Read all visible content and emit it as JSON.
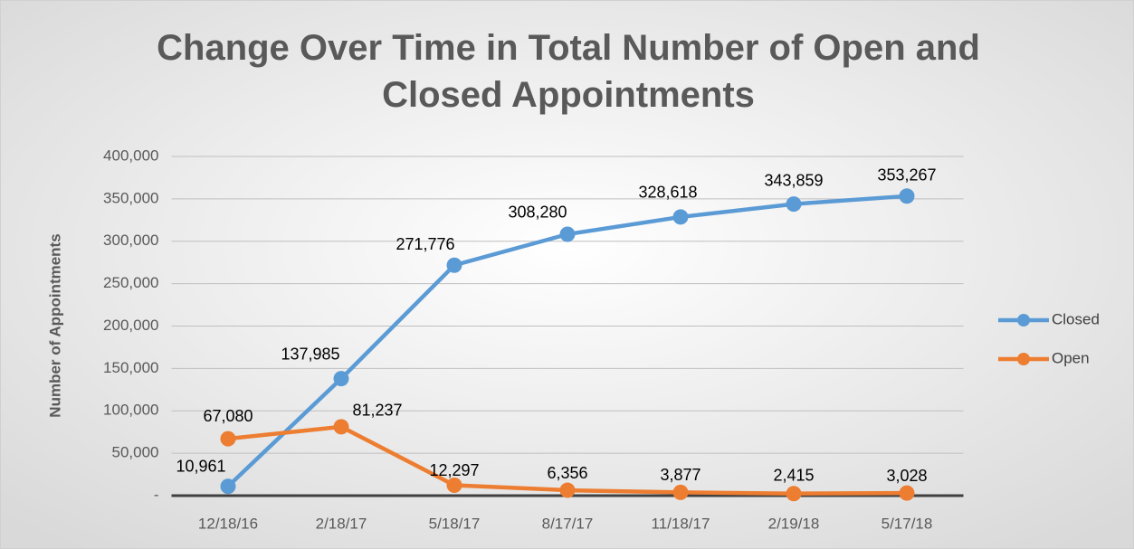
{
  "chart_data": {
    "type": "line",
    "title": "Change Over Time in Total Number of Open and Closed Appointments",
    "y_label": "Number of Appointments",
    "categories": [
      "12/18/16",
      "2/18/17",
      "5/18/17",
      "8/17/17",
      "11/18/17",
      "2/19/18",
      "5/17/18"
    ],
    "series": [
      {
        "name": "Closed",
        "color": "#5b9bd5",
        "values": [
          10961,
          137985,
          271776,
          308280,
          328618,
          343859,
          353267
        ],
        "value_labels": [
          "10,961",
          "137,985",
          "271,776",
          "308,280",
          "328,618",
          "343,859",
          "353,267"
        ]
      },
      {
        "name": "Open",
        "color": "#ed7d31",
        "values": [
          67080,
          81237,
          12297,
          6356,
          3877,
          2415,
          3028
        ],
        "value_labels": [
          "67,080",
          "81,237",
          "12,297",
          "6,356",
          "3,877",
          "2,415",
          "3,028"
        ]
      }
    ],
    "ylim": [
      0,
      400000
    ],
    "yticks": [
      {
        "value": 0,
        "label": "-"
      },
      {
        "value": 50000,
        "label": "50,000"
      },
      {
        "value": 100000,
        "label": "100,000"
      },
      {
        "value": 150000,
        "label": "150,000"
      },
      {
        "value": 200000,
        "label": "200,000"
      },
      {
        "value": 250000,
        "label": "250,000"
      },
      {
        "value": 300000,
        "label": "300,000"
      },
      {
        "value": 350000,
        "label": "350,000"
      },
      {
        "value": 400000,
        "label": "400,000"
      }
    ],
    "grid": true,
    "legend": "right"
  }
}
